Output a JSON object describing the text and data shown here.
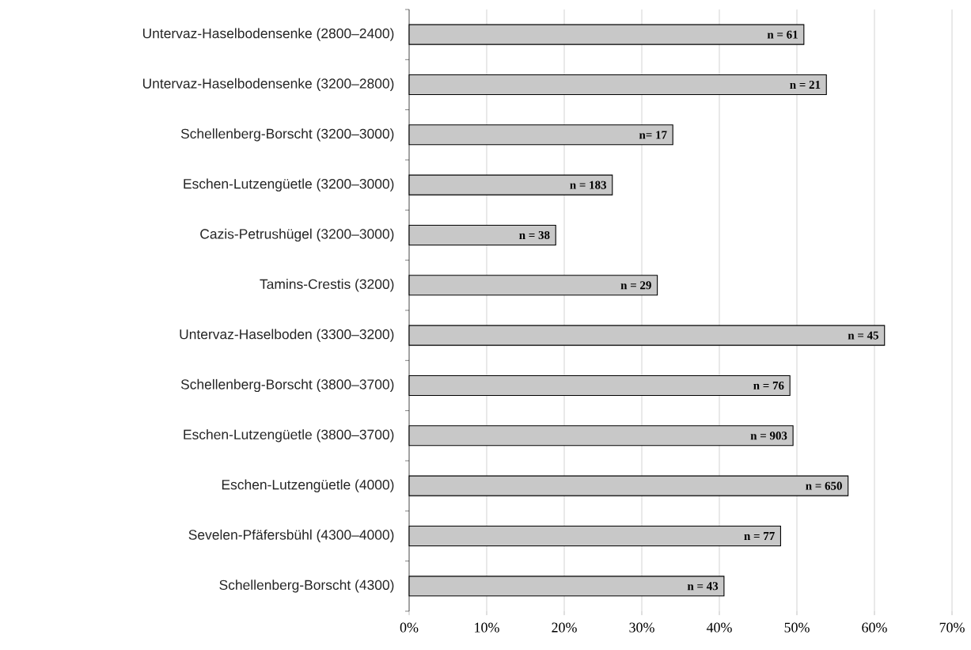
{
  "chart_data": {
    "type": "bar",
    "orientation": "horizontal",
    "categories": [
      "Untervaz-Haselbodensenke (2800–2400)",
      "Untervaz-Haselbodensenke (3200–2800)",
      "Schellenberg-Borscht (3200–3000)",
      "Eschen-Lutzengüetle (3200–3000)",
      "Cazis-Petrushügel (3200–3000)",
      "Tamins-Crestis (3200)",
      "Untervaz-Haselboden (3300–3200)",
      "Schellenberg-Borscht (3800–3700)",
      "Eschen-Lutzengüetle (3800–3700)",
      "Eschen-Lutzengüetle (4000)",
      "Sevelen-Pfäfersbühl (4300–4000)",
      "Schellenberg-Borscht (4300)"
    ],
    "values": [
      50.9,
      53.8,
      34.0,
      26.2,
      18.9,
      32.0,
      61.3,
      49.1,
      49.5,
      56.6,
      47.9,
      40.6
    ],
    "annotations": [
      {
        "text": "n = 61",
        "x": 50.9,
        "y": "Untervaz-Haselbodensenke (2800–2400)"
      },
      {
        "text": "n = 21",
        "x": 53.8,
        "y": "Untervaz-Haselbodensenke (3200–2800)"
      },
      {
        "text": "n= 17",
        "x": 34.0,
        "y": "Schellenberg-Borscht (3200–3000)"
      },
      {
        "text": "n = 183",
        "x": 26.2,
        "y": "Eschen-Lutzengüetle (3200–3000)"
      },
      {
        "text": "n = 38",
        "x": 18.9,
        "y": "Cazis-Petrushügel (3200–3000)"
      },
      {
        "text": "n = 29",
        "x": 32.0,
        "y": "Tamins-Crestis (3200)"
      },
      {
        "text": "n = 45",
        "x": 61.3,
        "y": "Untervaz-Haselboden (3300–3200)"
      },
      {
        "text": "n = 76",
        "x": 49.1,
        "y": "Schellenberg-Borscht (3800–3700)"
      },
      {
        "text": "n = 903",
        "x": 49.5,
        "y": "Eschen-Lutzengüetle (3800–3700)"
      },
      {
        "text": "n = 650",
        "x": 56.6,
        "y": "Eschen-Lutzengüetle (4000)"
      },
      {
        "text": "n = 77",
        "x": 47.9,
        "y": "Sevelen-Pfäfersbühl (4300–4000)"
      },
      {
        "text": "n = 43",
        "x": 40.6,
        "y": "Schellenberg-Borscht (4300)"
      }
    ],
    "color": "#c8c8c8",
    "xlim": [
      0,
      70
    ],
    "xticks": [
      {
        "value": 0,
        "label": "0%"
      },
      {
        "value": 10,
        "label": "10%"
      },
      {
        "value": 20,
        "label": "20%"
      },
      {
        "value": 30,
        "label": "30%"
      },
      {
        "value": 40,
        "label": "40%"
      },
      {
        "value": 50,
        "label": "50%"
      },
      {
        "value": 60,
        "label": "60%"
      },
      {
        "value": 70,
        "label": "70%"
      }
    ],
    "grid": "x"
  }
}
